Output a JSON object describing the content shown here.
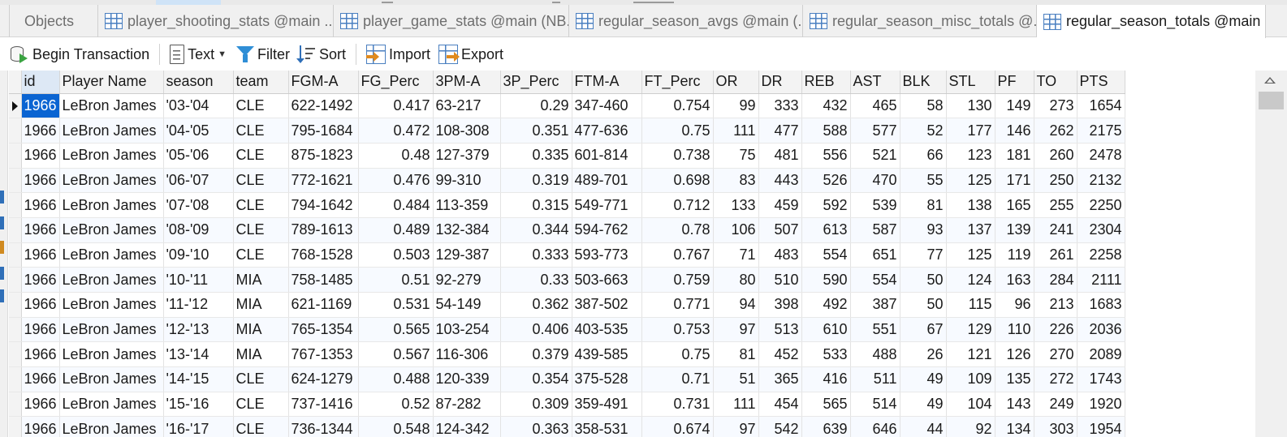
{
  "tabs": [
    {
      "label": "Objects",
      "icon": "none",
      "active": false
    },
    {
      "label": "player_shooting_stats @main ...",
      "icon": "table-icon",
      "active": false
    },
    {
      "label": "player_game_stats @main (NB...",
      "icon": "table-icon",
      "active": false
    },
    {
      "label": "regular_season_avgs @main (...",
      "icon": "table-icon",
      "active": false
    },
    {
      "label": "regular_season_misc_totals @...",
      "icon": "table-icon",
      "active": false
    },
    {
      "label": "regular_season_totals @main (...",
      "icon": "table-icon",
      "active": true
    }
  ],
  "toolbar": {
    "begin_transaction": "Begin Transaction",
    "text": "Text",
    "filter": "Filter",
    "sort": "Sort",
    "import": "Import",
    "export": "Export"
  },
  "columns": [
    "id",
    "Player Name",
    "season",
    "team",
    "FGM-A",
    "FG_Perc",
    "3PM-A",
    "3P_Perc",
    "FTM-A",
    "FT_Perc",
    "OR",
    "DR",
    "REB",
    "AST",
    "BLK",
    "STL",
    "PF",
    "TO",
    "PTS"
  ],
  "rows": [
    [
      "1966",
      "LeBron James",
      "'03-'04",
      "CLE",
      "622-1492",
      "0.417",
      "63-217",
      "0.29",
      "347-460",
      "0.754",
      "99",
      "333",
      "432",
      "465",
      "58",
      "130",
      "149",
      "273",
      "1654"
    ],
    [
      "1966",
      "LeBron James",
      "'04-'05",
      "CLE",
      "795-1684",
      "0.472",
      "108-308",
      "0.351",
      "477-636",
      "0.75",
      "111",
      "477",
      "588",
      "577",
      "52",
      "177",
      "146",
      "262",
      "2175"
    ],
    [
      "1966",
      "LeBron James",
      "'05-'06",
      "CLE",
      "875-1823",
      "0.48",
      "127-379",
      "0.335",
      "601-814",
      "0.738",
      "75",
      "481",
      "556",
      "521",
      "66",
      "123",
      "181",
      "260",
      "2478"
    ],
    [
      "1966",
      "LeBron James",
      "'06-'07",
      "CLE",
      "772-1621",
      "0.476",
      "99-310",
      "0.319",
      "489-701",
      "0.698",
      "83",
      "443",
      "526",
      "470",
      "55",
      "125",
      "171",
      "250",
      "2132"
    ],
    [
      "1966",
      "LeBron James",
      "'07-'08",
      "CLE",
      "794-1642",
      "0.484",
      "113-359",
      "0.315",
      "549-771",
      "0.712",
      "133",
      "459",
      "592",
      "539",
      "81",
      "138",
      "165",
      "255",
      "2250"
    ],
    [
      "1966",
      "LeBron James",
      "'08-'09",
      "CLE",
      "789-1613",
      "0.489",
      "132-384",
      "0.344",
      "594-762",
      "0.78",
      "106",
      "507",
      "613",
      "587",
      "93",
      "137",
      "139",
      "241",
      "2304"
    ],
    [
      "1966",
      "LeBron James",
      "'09-'10",
      "CLE",
      "768-1528",
      "0.503",
      "129-387",
      "0.333",
      "593-773",
      "0.767",
      "71",
      "483",
      "554",
      "651",
      "77",
      "125",
      "119",
      "261",
      "2258"
    ],
    [
      "1966",
      "LeBron James",
      "'10-'11",
      "MIA",
      "758-1485",
      "0.51",
      "92-279",
      "0.33",
      "503-663",
      "0.759",
      "80",
      "510",
      "590",
      "554",
      "50",
      "124",
      "163",
      "284",
      "2111"
    ],
    [
      "1966",
      "LeBron James",
      "'11-'12",
      "MIA",
      "621-1169",
      "0.531",
      "54-149",
      "0.362",
      "387-502",
      "0.771",
      "94",
      "398",
      "492",
      "387",
      "50",
      "115",
      "96",
      "213",
      "1683"
    ],
    [
      "1966",
      "LeBron James",
      "'12-'13",
      "MIA",
      "765-1354",
      "0.565",
      "103-254",
      "0.406",
      "403-535",
      "0.753",
      "97",
      "513",
      "610",
      "551",
      "67",
      "129",
      "110",
      "226",
      "2036"
    ],
    [
      "1966",
      "LeBron James",
      "'13-'14",
      "MIA",
      "767-1353",
      "0.567",
      "116-306",
      "0.379",
      "439-585",
      "0.75",
      "81",
      "452",
      "533",
      "488",
      "26",
      "121",
      "126",
      "270",
      "2089"
    ],
    [
      "1966",
      "LeBron James",
      "'14-'15",
      "CLE",
      "624-1279",
      "0.488",
      "120-339",
      "0.354",
      "375-528",
      "0.71",
      "51",
      "365",
      "416",
      "511",
      "49",
      "109",
      "135",
      "272",
      "1743"
    ],
    [
      "1966",
      "LeBron James",
      "'15-'16",
      "CLE",
      "737-1416",
      "0.52",
      "87-282",
      "0.309",
      "359-491",
      "0.731",
      "111",
      "454",
      "565",
      "514",
      "49",
      "104",
      "143",
      "249",
      "1920"
    ],
    [
      "1966",
      "LeBron James",
      "'16-'17",
      "CLE",
      "736-1344",
      "0.548",
      "124-342",
      "0.363",
      "358-531",
      "0.674",
      "97",
      "542",
      "639",
      "646",
      "44",
      "92",
      "134",
      "303",
      "1954"
    ]
  ],
  "selected_cell": {
    "row": 0,
    "col": 0
  },
  "colors": {
    "accent": "#0a64d2",
    "table_icon": "#4a7fc0",
    "filter_icon": "#2f8ed6"
  }
}
